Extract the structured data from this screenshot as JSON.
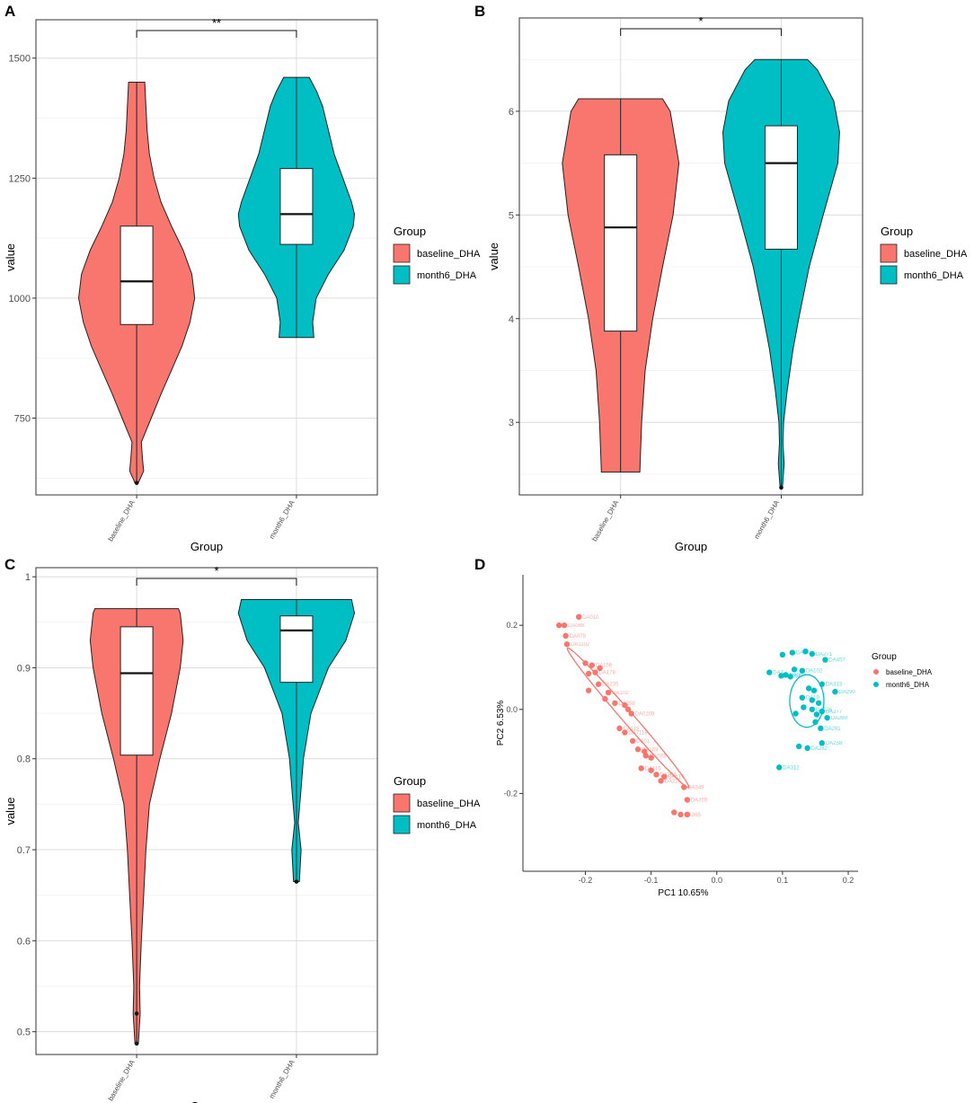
{
  "colors": {
    "baseline": "#F8766D",
    "month6": "#00BFC4",
    "grid": "#e5e5e5",
    "frame": "#333333"
  },
  "chart_data": [
    {
      "panel": "A",
      "type": "violin",
      "categories": [
        "baseline_DHA",
        "month6_DHA"
      ],
      "xlabel": "Group",
      "ylabel": "value",
      "ylim": [
        590,
        1580
      ],
      "yticks": [
        750,
        1000,
        1250,
        1500
      ],
      "significance": "**",
      "legend": {
        "title": "Group",
        "entries": [
          "baseline_DHA",
          "month6_DHA"
        ],
        "position": "right"
      },
      "series": [
        {
          "name": "baseline_DHA",
          "min": 615,
          "max": 1450,
          "q1": 945,
          "median": 1035,
          "q3": 1150,
          "density": [
            [
              615,
              0.03
            ],
            [
              640,
              0.12
            ],
            [
              665,
              0.1
            ],
            [
              700,
              0.08
            ],
            [
              750,
              0.25
            ],
            [
              800,
              0.42
            ],
            [
              850,
              0.6
            ],
            [
              900,
              0.78
            ],
            [
              950,
              0.92
            ],
            [
              1000,
              1.0
            ],
            [
              1050,
              0.95
            ],
            [
              1100,
              0.8
            ],
            [
              1150,
              0.6
            ],
            [
              1200,
              0.42
            ],
            [
              1250,
              0.3
            ],
            [
              1300,
              0.22
            ],
            [
              1350,
              0.18
            ],
            [
              1400,
              0.16
            ],
            [
              1450,
              0.14
            ]
          ],
          "outliers": [
            615
          ]
        },
        {
          "name": "month6_DHA",
          "min": 918,
          "max": 1460,
          "q1": 1112,
          "median": 1175,
          "q3": 1270,
          "density": [
            [
              918,
              0.3
            ],
            [
              950,
              0.28
            ],
            [
              1000,
              0.34
            ],
            [
              1050,
              0.55
            ],
            [
              1100,
              0.82
            ],
            [
              1150,
              0.98
            ],
            [
              1175,
              1.0
            ],
            [
              1200,
              0.95
            ],
            [
              1250,
              0.8
            ],
            [
              1300,
              0.65
            ],
            [
              1350,
              0.55
            ],
            [
              1400,
              0.45
            ],
            [
              1430,
              0.35
            ],
            [
              1460,
              0.22
            ]
          ],
          "outliers": []
        }
      ]
    },
    {
      "panel": "B",
      "type": "violin",
      "categories": [
        "baseline_DHA",
        "month6_DHA"
      ],
      "xlabel": "Group",
      "ylabel": "value",
      "ylim": [
        2.3,
        6.9
      ],
      "yticks": [
        3,
        4,
        5,
        6
      ],
      "significance": "*",
      "legend": {
        "title": "Group",
        "entries": [
          "baseline_DHA",
          "month6_DHA"
        ],
        "position": "right"
      },
      "series": [
        {
          "name": "baseline_DHA",
          "min": 2.52,
          "max": 6.12,
          "q1": 3.88,
          "median": 4.88,
          "q3": 5.58,
          "density": [
            [
              2.52,
              0.33
            ],
            [
              3.0,
              0.36
            ],
            [
              3.5,
              0.42
            ],
            [
              4.0,
              0.55
            ],
            [
              4.5,
              0.72
            ],
            [
              5.0,
              0.9
            ],
            [
              5.5,
              1.0
            ],
            [
              6.0,
              0.85
            ],
            [
              6.12,
              0.72
            ]
          ],
          "outliers": []
        },
        {
          "name": "month6_DHA",
          "min": 2.37,
          "max": 6.5,
          "q1": 4.67,
          "median": 5.5,
          "q3": 5.86,
          "density": [
            [
              2.37,
              0.02
            ],
            [
              2.6,
              0.05
            ],
            [
              2.8,
              0.03
            ],
            [
              3.0,
              0.04
            ],
            [
              3.3,
              0.1
            ],
            [
              3.7,
              0.2
            ],
            [
              4.0,
              0.3
            ],
            [
              4.5,
              0.48
            ],
            [
              5.0,
              0.72
            ],
            [
              5.5,
              0.97
            ],
            [
              5.8,
              1.0
            ],
            [
              6.1,
              0.9
            ],
            [
              6.4,
              0.62
            ],
            [
              6.5,
              0.45
            ]
          ],
          "outliers": [
            2.37
          ]
        }
      ]
    },
    {
      "panel": "C",
      "type": "violin",
      "categories": [
        "baseline_DHA",
        "month6_DHA"
      ],
      "xlabel": "Group",
      "ylabel": "value",
      "ylim": [
        0.475,
        1.01
      ],
      "yticks": [
        0.5,
        0.6,
        0.7,
        0.8,
        0.9,
        1.0
      ],
      "significance": "*",
      "legend": {
        "title": "Group",
        "entries": [
          "baseline_DHA",
          "month6_DHA"
        ],
        "position": "right"
      },
      "series": [
        {
          "name": "baseline_DHA",
          "min": 0.487,
          "max": 0.965,
          "q1": 0.804,
          "median": 0.894,
          "q3": 0.945,
          "density": [
            [
              0.487,
              0.03
            ],
            [
              0.52,
              0.06
            ],
            [
              0.55,
              0.05
            ],
            [
              0.6,
              0.08
            ],
            [
              0.65,
              0.12
            ],
            [
              0.7,
              0.16
            ],
            [
              0.75,
              0.22
            ],
            [
              0.8,
              0.4
            ],
            [
              0.85,
              0.6
            ],
            [
              0.9,
              0.75
            ],
            [
              0.93,
              0.8
            ],
            [
              0.96,
              0.75
            ],
            [
              0.965,
              0.72
            ]
          ],
          "outliers": [
            0.487,
            0.52
          ]
        },
        {
          "name": "month6_DHA",
          "min": 0.665,
          "max": 0.975,
          "q1": 0.884,
          "median": 0.941,
          "q3": 0.957,
          "density": [
            [
              0.665,
              0.05
            ],
            [
              0.7,
              0.08
            ],
            [
              0.73,
              0.03
            ],
            [
              0.76,
              0.07
            ],
            [
              0.8,
              0.12
            ],
            [
              0.85,
              0.25
            ],
            [
              0.9,
              0.55
            ],
            [
              0.93,
              0.85
            ],
            [
              0.96,
              1.0
            ],
            [
              0.975,
              0.95
            ]
          ],
          "outliers": [
            0.665
          ]
        }
      ]
    },
    {
      "panel": "D",
      "type": "scatter",
      "xlabel": "PC1 10.65%",
      "ylabel": "PC2 6.53%",
      "xlim": [
        -0.295,
        0.215
      ],
      "ylim": [
        -0.385,
        0.32
      ],
      "xticks": [
        -0.2,
        -0.1,
        0.0,
        0.1,
        0.2
      ],
      "yticks": [
        -0.2,
        0.0,
        0.2
      ],
      "legend": {
        "title": "Group",
        "entries": [
          "baseline_DHA",
          "month6_DHA"
        ],
        "position": "right"
      },
      "ellipses": [
        {
          "group": "baseline_DHA",
          "cx": -0.135,
          "cy": -0.02,
          "rx": 0.38,
          "ry": 0.02,
          "angle_deg": -61
        },
        {
          "group": "month6_DHA",
          "cx": 0.137,
          "cy": 0.02,
          "rx": 0.125,
          "ry": 0.052,
          "angle_deg": 90
        }
      ],
      "series": [
        {
          "name": "baseline_DHA",
          "points": [
            [
              -0.21,
              0.22,
              "DA010"
            ],
            [
              -0.24,
              0.2,
              ""
            ],
            [
              -0.232,
              0.2,
              "DA088"
            ],
            [
              -0.23,
              0.175,
              "DA079"
            ],
            [
              -0.228,
              0.155,
              "DA1102"
            ],
            [
              -0.2,
              0.11,
              ""
            ],
            [
              -0.19,
              0.105,
              "DA156"
            ],
            [
              -0.178,
              0.098,
              ""
            ],
            [
              -0.185,
              0.088,
              "DA178"
            ],
            [
              -0.195,
              0.085,
              ""
            ],
            [
              -0.18,
              0.06,
              "DA235"
            ],
            [
              -0.195,
              0.045,
              ""
            ],
            [
              -0.165,
              0.04,
              "DA102"
            ],
            [
              -0.17,
              0.025,
              ""
            ],
            [
              -0.155,
              0.015,
              "DA258"
            ],
            [
              -0.14,
              0.01,
              ""
            ],
            [
              -0.135,
              0.0,
              ""
            ],
            [
              -0.13,
              -0.01,
              "DA0109"
            ],
            [
              -0.148,
              -0.045,
              "DA115"
            ],
            [
              -0.14,
              -0.055,
              "DA7118"
            ],
            [
              -0.128,
              -0.075,
              "DA01"
            ],
            [
              -0.12,
              -0.095,
              "DA169"
            ],
            [
              -0.11,
              -0.1,
              ""
            ],
            [
              -0.108,
              -0.11,
              "DA093"
            ],
            [
              -0.1,
              -0.115,
              ""
            ],
            [
              -0.115,
              -0.14,
              "DA116"
            ],
            [
              -0.1,
              -0.145,
              ""
            ],
            [
              -0.092,
              -0.155,
              "DA204"
            ],
            [
              -0.08,
              -0.16,
              "DA117"
            ],
            [
              -0.085,
              -0.17,
              "DA228"
            ],
            [
              -0.05,
              -0.185,
              "DA349"
            ],
            [
              -0.045,
              -0.215,
              "DA355"
            ],
            [
              -0.065,
              -0.245,
              ""
            ],
            [
              -0.055,
              -0.25,
              "DA365"
            ],
            [
              -0.045,
              -0.25,
              ""
            ]
          ]
        },
        {
          "name": "month6_DHA",
          "points": [
            [
              0.1,
              0.13,
              ""
            ],
            [
              0.115,
              0.135,
              "DA2"
            ],
            [
              0.135,
              0.138,
              ""
            ],
            [
              0.145,
              0.132,
              "DA271"
            ],
            [
              0.165,
              0.118,
              "DA457"
            ],
            [
              0.08,
              0.088,
              "DA1"
            ],
            [
              0.098,
              0.08,
              "DA064"
            ],
            [
              0.112,
              0.078,
              ""
            ],
            [
              0.118,
              0.095,
              ""
            ],
            [
              0.13,
              0.092,
              "DA102"
            ],
            [
              0.105,
              0.082,
              "DA320"
            ],
            [
              0.14,
              0.05,
              ""
            ],
            [
              0.16,
              0.06,
              "DA313"
            ],
            [
              0.148,
              0.045,
              ""
            ],
            [
              0.18,
              0.042,
              "DA290"
            ],
            [
              0.13,
              0.028,
              "DA19"
            ],
            [
              0.145,
              0.022,
              ""
            ],
            [
              0.155,
              0.015,
              ""
            ],
            [
              0.132,
              0.005,
              ""
            ],
            [
              0.145,
              0.0,
              "DA126"
            ],
            [
              0.12,
              -0.01,
              ""
            ],
            [
              0.16,
              -0.005,
              "DA277"
            ],
            [
              0.152,
              -0.012,
              ""
            ],
            [
              0.168,
              -0.02,
              "DA260"
            ],
            [
              0.15,
              -0.03,
              ""
            ],
            [
              0.158,
              -0.045,
              "DA281"
            ],
            [
              0.16,
              -0.08,
              "DA258"
            ],
            [
              0.125,
              -0.088,
              ""
            ],
            [
              0.138,
              -0.092,
              "DA262"
            ],
            [
              0.095,
              -0.138,
              "DA312"
            ]
          ]
        }
      ]
    }
  ]
}
